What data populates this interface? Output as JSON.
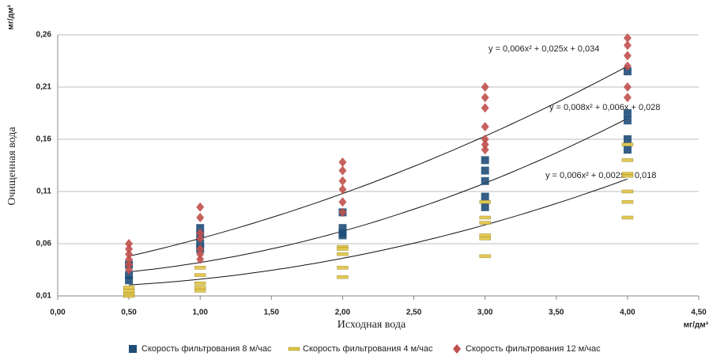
{
  "chart_data": {
    "type": "scatter",
    "y_label": "Очищенная вода",
    "x_label": "Исходная вода",
    "y_unit": "мг/дм³",
    "x_unit": "мг/дм³",
    "xlim": [
      0,
      4.5
    ],
    "xticks": [
      {
        "value": 0,
        "label": "0,00"
      },
      {
        "value": 0.5,
        "label": "0,50"
      },
      {
        "value": 1,
        "label": "1,00"
      },
      {
        "value": 1.5,
        "label": "1,50"
      },
      {
        "value": 2,
        "label": "2,00"
      },
      {
        "value": 2.5,
        "label": "2,50"
      },
      {
        "value": 3,
        "label": "3,00"
      },
      {
        "value": 3.5,
        "label": "3,50"
      },
      {
        "value": 4,
        "label": "4,00"
      },
      {
        "value": 4.5,
        "label": "4,50"
      }
    ],
    "ylim": [
      0.01,
      0.26
    ],
    "yticks": [
      {
        "value": 0.01,
        "label": "0,01"
      },
      {
        "value": 0.06,
        "label": "0,06"
      },
      {
        "value": 0.11,
        "label": "0,11"
      },
      {
        "value": 0.16,
        "label": "0,16"
      },
      {
        "value": 0.21,
        "label": "0,21"
      },
      {
        "value": 0.26,
        "label": "0,26"
      }
    ],
    "grid": true,
    "series": [
      {
        "name": "Скорость фильтрования  8 м/час",
        "color": "#1f4e79",
        "marker": "square",
        "x": [
          0.5,
          0.5,
          0.5,
          1,
          1,
          1,
          1,
          2,
          2,
          2,
          2,
          3,
          3,
          3,
          3,
          3,
          4,
          4,
          4,
          4,
          4
        ],
        "values": [
          0.025,
          0.03,
          0.04,
          0.075,
          0.068,
          0.06,
          0.055,
          0.09,
          0.075,
          0.07,
          0.068,
          0.14,
          0.13,
          0.12,
          0.105,
          0.095,
          0.225,
          0.185,
          0.178,
          0.16,
          0.15
        ],
        "trendline": {
          "label": "y = 0,008x² + 0,006x + 0,028",
          "coef": [
            0.008,
            0.006,
            0.028
          ],
          "xrange": [
            0.5,
            4
          ]
        }
      },
      {
        "name": "Скорость фильтрования  4 м/час",
        "color": "#e0c341",
        "marker": "dash",
        "x": [
          0.5,
          0.5,
          0.5,
          0.5,
          1,
          1,
          1,
          1,
          1,
          2,
          2,
          2,
          2,
          2,
          3,
          3,
          3,
          3,
          3,
          3,
          4,
          4,
          4,
          4,
          4,
          4,
          4
        ],
        "values": [
          0.018,
          0.015,
          0.012,
          0.01,
          0.037,
          0.03,
          0.022,
          0.018,
          0.015,
          0.057,
          0.055,
          0.05,
          0.037,
          0.028,
          0.1,
          0.085,
          0.08,
          0.068,
          0.065,
          0.048,
          0.155,
          0.14,
          0.127,
          0.125,
          0.11,
          0.1,
          0.085
        ],
        "trendline": {
          "label": "y = 0,006x² + 0,002x + 0,018",
          "coef": [
            0.006,
            0.002,
            0.018
          ],
          "xrange": [
            0.5,
            4
          ]
        }
      },
      {
        "name": "Скорость фильтрования  12 м/час",
        "color": "#c0504d",
        "marker": "diamond",
        "x": [
          0.5,
          0.5,
          0.5,
          0.5,
          0.5,
          0.5,
          1,
          1,
          1,
          1,
          1,
          1,
          1,
          2,
          2,
          2,
          2,
          2,
          2,
          3,
          3,
          3,
          3,
          3,
          3,
          3,
          4,
          4,
          4,
          4,
          4,
          4
        ],
        "values": [
          0.06,
          0.055,
          0.05,
          0.045,
          0.04,
          0.035,
          0.095,
          0.085,
          0.07,
          0.065,
          0.055,
          0.05,
          0.045,
          0.138,
          0.13,
          0.12,
          0.112,
          0.1,
          0.09,
          0.21,
          0.2,
          0.19,
          0.172,
          0.16,
          0.155,
          0.15,
          0.257,
          0.25,
          0.24,
          0.23,
          0.21,
          0.2
        ],
        "trendline": {
          "label": "y = 0,006x² + 0,025x + 0,034",
          "coef": [
            0.006,
            0.025,
            0.034
          ],
          "xrange": [
            0.5,
            4
          ]
        }
      }
    ]
  }
}
